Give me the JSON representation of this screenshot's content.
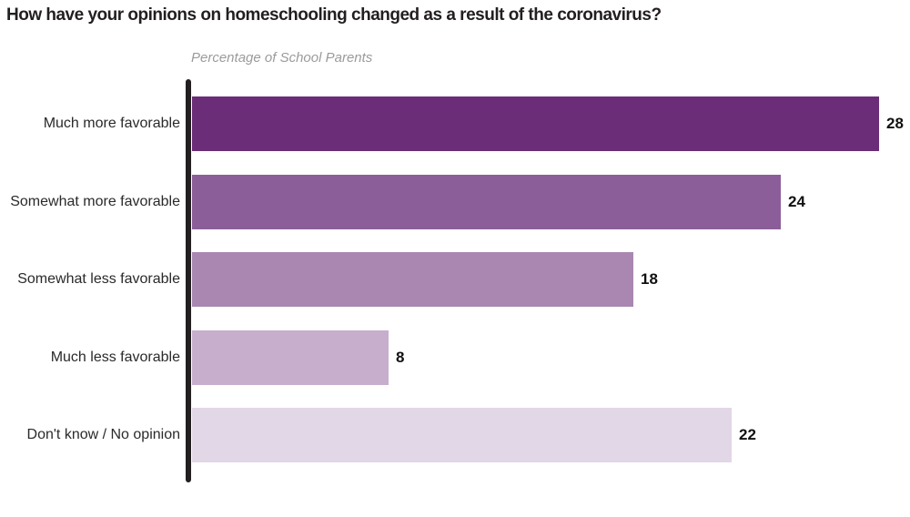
{
  "chart_data": {
    "type": "bar",
    "orientation": "horizontal",
    "title": "How have your opinions on homeschooling changed as a result of the coronavirus?",
    "subtitle": "Percentage of School Parents",
    "categories": [
      "Much more favorable",
      "Somewhat more favorable",
      "Somewhat less favorable",
      "Much less favorable",
      "Don't know / No opinion"
    ],
    "values": [
      28,
      24,
      18,
      8,
      22
    ],
    "value_labels": [
      "28",
      "24",
      "18",
      "8",
      "22"
    ],
    "bar_colors": [
      "#6B2D77",
      "#8C5E99",
      "#A987B1",
      "#C7AECD",
      "#E2D7E6"
    ],
    "axis_color": "#231F20",
    "title_color": "#231F20",
    "subtitle_color": "#9B9B9B",
    "xlabel": "",
    "ylabel": "",
    "xlim": [
      0,
      28
    ],
    "grid": false,
    "legend": false
  }
}
